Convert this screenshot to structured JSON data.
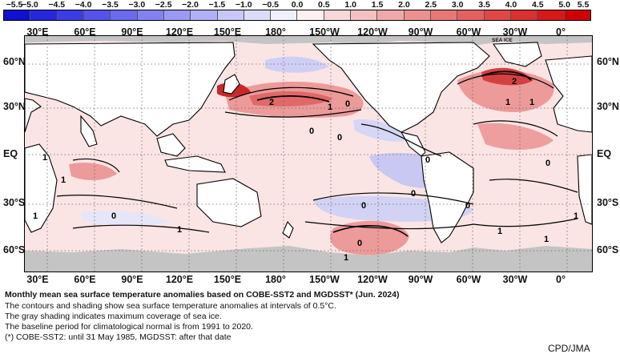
{
  "colorbar": {
    "labels": [
      "−5.5",
      "−5.0",
      "−4.5",
      "−4.0",
      "−3.5",
      "−3.0",
      "−2.5",
      "−2.0",
      "−1.5",
      "−1.0",
      "−0.5",
      "0.0",
      "0.5",
      "1.0",
      "1.5",
      "2.0",
      "2.5",
      "3.0",
      "3.5",
      "4.0",
      "4.5",
      "5.0",
      "5.5"
    ],
    "colors": [
      "#1010d0",
      "#2626e0",
      "#3c3ce6",
      "#5454ea",
      "#6a6aee",
      "#8282f2",
      "#9a9af4",
      "#b0b0f6",
      "#c8c8f8",
      "#dcdcfa",
      "#f0f0fc",
      "#fcf0f0",
      "#f8d8d8",
      "#f4c0c0",
      "#f0a8a8",
      "#ec9090",
      "#e87878",
      "#e46060",
      "#e04848",
      "#dc3030",
      "#d81818",
      "#d00000"
    ]
  },
  "map": {
    "lon_labels": [
      "30°E",
      "60°E",
      "90°E",
      "120°E",
      "150°E",
      "180°",
      "150°W",
      "120°W",
      "90°W",
      "60°W",
      "30°W",
      "0°"
    ],
    "lat_labels": [
      "60°N",
      "30°N",
      "EQ",
      "30°S",
      "60°S"
    ],
    "sea_ice_label": "SEA ICE",
    "contour_labels": [
      "0",
      "2",
      "1",
      "0",
      "0",
      "0",
      "0",
      "0",
      "2",
      "1",
      "1",
      "0",
      "1",
      "1",
      "0",
      "1",
      "0",
      "0",
      "1",
      "1",
      "1",
      "1",
      "1"
    ],
    "colors": {
      "land": "#ffffff",
      "sea_ice": "#c4c4c4",
      "warm": "#f2bcbc",
      "cool": "#c8c8f4"
    }
  },
  "caption": {
    "title": "Monthly mean sea surface temperature anomalies based on COBE-SST2 and MGDSST* (Jun. 2024)",
    "lines": [
      "The contours and shading show sea surface temperature anomalies at intervals of 0.5°C.",
      "The gray shading indicates maximum coverage of sea ice.",
      "The baseline period for climatological normal is from 1991 to 2020.",
      "(*) COBE-SST2: until 31 May 1985, MGDSST: after that date"
    ]
  },
  "credit": "CPD/JMA"
}
